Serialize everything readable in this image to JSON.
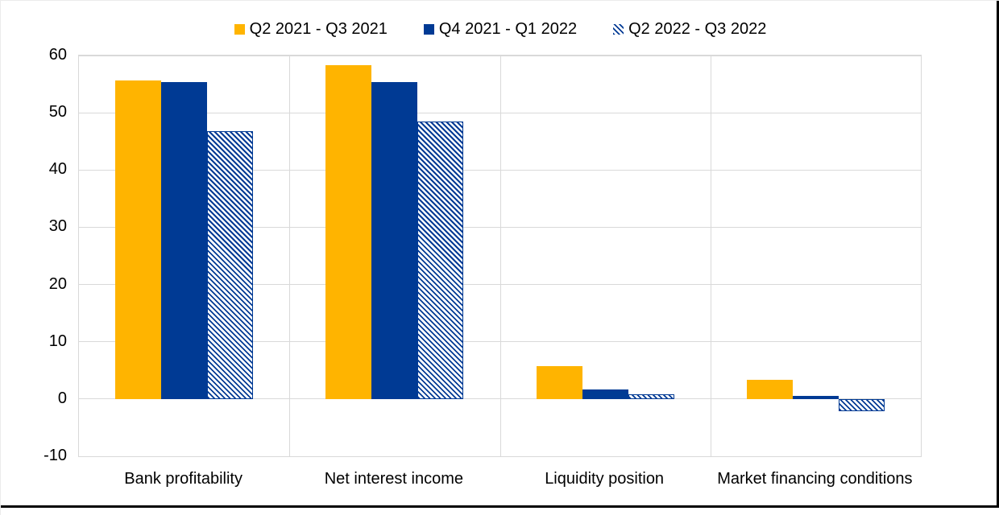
{
  "legend": [
    {
      "label": "Q2 2021 - Q3 2021",
      "color": "#FFB400",
      "pattern": "solid"
    },
    {
      "label": "Q4 2021 - Q1 2022",
      "color": "#003A94",
      "pattern": "solid"
    },
    {
      "label": "Q2 2022 - Q3 2022",
      "color": "#003A94",
      "pattern": "hatched"
    }
  ],
  "colors": {
    "series1": "#FFB400",
    "series2": "#003A94",
    "hatch_stripe": "#003A94",
    "gridline": "#d9d9d9",
    "text": "#000000",
    "background": "#ffffff"
  },
  "chart_data": {
    "type": "bar",
    "categories": [
      "Bank profitability",
      "Net interest income",
      "Liquidity position",
      "Market financing conditions"
    ],
    "series": [
      {
        "name": "Q2 2021 - Q3 2021",
        "style": "solid-orange",
        "values": [
          55.6,
          58.3,
          5.7,
          3.4
        ]
      },
      {
        "name": "Q4 2021 - Q1 2022",
        "style": "solid-blue",
        "values": [
          55.4,
          55.4,
          1.7,
          0.6
        ]
      },
      {
        "name": "Q2 2022 - Q3 2022",
        "style": "hatched-blue",
        "values": [
          46.8,
          48.5,
          0.8,
          -2.1
        ]
      }
    ],
    "title": "",
    "xlabel": "",
    "ylabel": "",
    "ylim": [
      -10,
      60
    ],
    "yticks": [
      60,
      50,
      40,
      30,
      20,
      10,
      0,
      -10
    ],
    "grid": true,
    "legend_position": "top"
  }
}
